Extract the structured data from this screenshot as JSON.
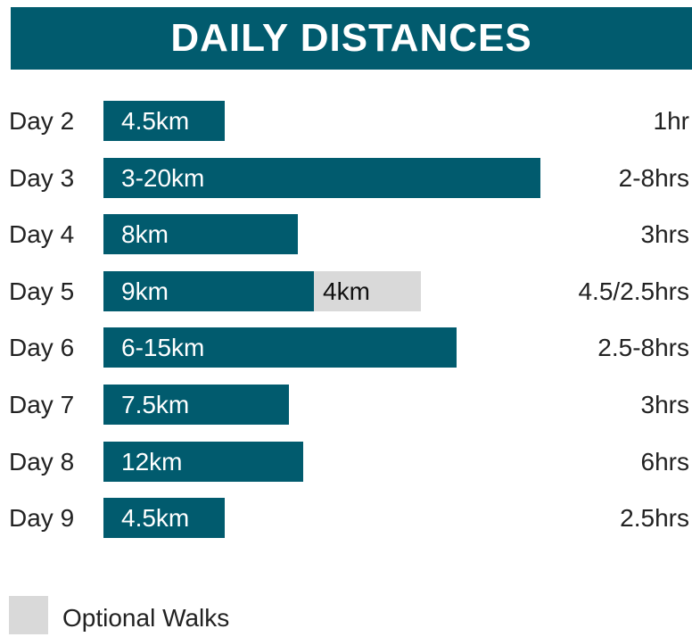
{
  "title": "DAILY DISTANCES",
  "rows": [
    {
      "day": "Day 2",
      "distance": "4.5km",
      "time": "1hr"
    },
    {
      "day": "Day 3",
      "distance": "3-20km",
      "time": "2-8hrs"
    },
    {
      "day": "Day 4",
      "distance": "8km",
      "time": "3hrs"
    },
    {
      "day": "Day 5",
      "distance": "9km",
      "optional": "4km",
      "time": "4.5/2.5hrs"
    },
    {
      "day": "Day 6",
      "distance": "6-15km",
      "time": "2.5-8hrs"
    },
    {
      "day": "Day 7",
      "distance": "7.5km",
      "time": "3hrs"
    },
    {
      "day": "Day 8",
      "distance": "12km",
      "time": "6hrs"
    },
    {
      "day": "Day 9",
      "distance": "4.5km",
      "time": "2.5hrs"
    }
  ],
  "legend": "Optional Walks"
}
